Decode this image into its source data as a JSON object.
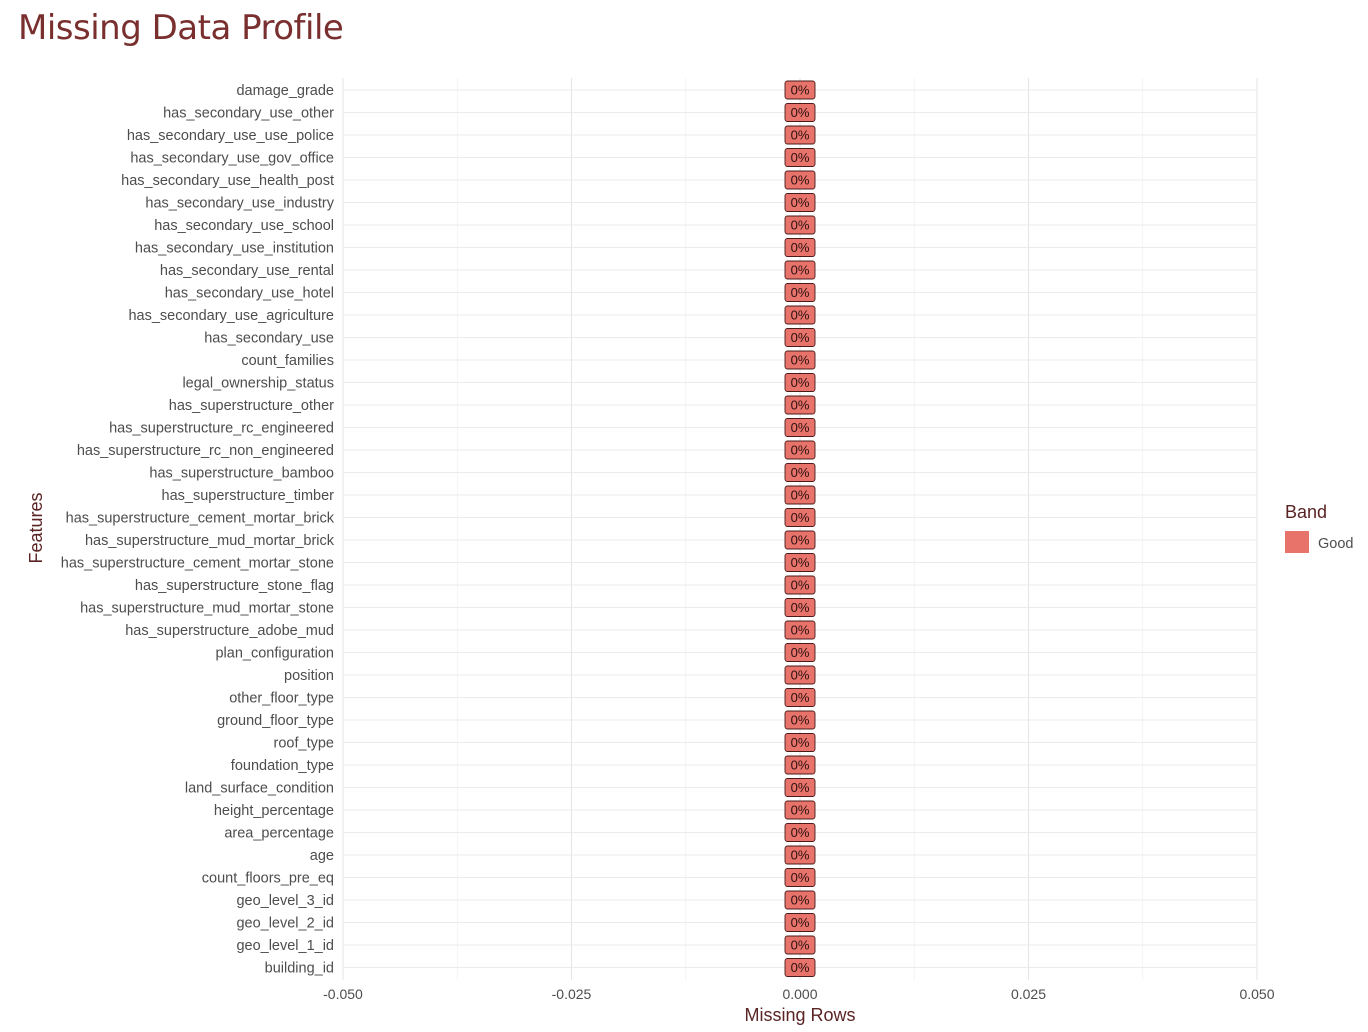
{
  "chart_data": {
    "type": "bar",
    "orientation": "horizontal",
    "title": "Missing Data Profile",
    "xlabel": "Missing Rows",
    "ylabel": "Features",
    "xlim": [
      -0.05,
      0.05
    ],
    "x_ticks": [
      -0.05,
      -0.025,
      0,
      0.025,
      0.05
    ],
    "x_tick_labels": [
      "-0.050",
      "-0.025",
      "0.000",
      "0.025",
      "0.050"
    ],
    "grid": true,
    "legend": {
      "title": "Band",
      "position": "right",
      "entries": [
        {
          "label": "Good",
          "color": "#e8736b"
        }
      ]
    },
    "categories": [
      "damage_grade",
      "has_secondary_use_other",
      "has_secondary_use_use_police",
      "has_secondary_use_gov_office",
      "has_secondary_use_health_post",
      "has_secondary_use_industry",
      "has_secondary_use_school",
      "has_secondary_use_institution",
      "has_secondary_use_rental",
      "has_secondary_use_hotel",
      "has_secondary_use_agriculture",
      "has_secondary_use",
      "count_families",
      "legal_ownership_status",
      "has_superstructure_other",
      "has_superstructure_rc_engineered",
      "has_superstructure_rc_non_engineered",
      "has_superstructure_bamboo",
      "has_superstructure_timber",
      "has_superstructure_cement_mortar_brick",
      "has_superstructure_mud_mortar_brick",
      "has_superstructure_cement_mortar_stone",
      "has_superstructure_stone_flag",
      "has_superstructure_mud_mortar_stone",
      "has_superstructure_adobe_mud",
      "plan_configuration",
      "position",
      "other_floor_type",
      "ground_floor_type",
      "roof_type",
      "foundation_type",
      "land_surface_condition",
      "height_percentage",
      "area_percentage",
      "age",
      "count_floors_pre_eq",
      "geo_level_3_id",
      "geo_level_2_id",
      "geo_level_1_id",
      "building_id"
    ],
    "values": [
      0,
      0,
      0,
      0,
      0,
      0,
      0,
      0,
      0,
      0,
      0,
      0,
      0,
      0,
      0,
      0,
      0,
      0,
      0,
      0,
      0,
      0,
      0,
      0,
      0,
      0,
      0,
      0,
      0,
      0,
      0,
      0,
      0,
      0,
      0,
      0,
      0,
      0,
      0,
      0
    ],
    "value_labels": [
      "0%",
      "0%",
      "0%",
      "0%",
      "0%",
      "0%",
      "0%",
      "0%",
      "0%",
      "0%",
      "0%",
      "0%",
      "0%",
      "0%",
      "0%",
      "0%",
      "0%",
      "0%",
      "0%",
      "0%",
      "0%",
      "0%",
      "0%",
      "0%",
      "0%",
      "0%",
      "0%",
      "0%",
      "0%",
      "0%",
      "0%",
      "0%",
      "0%",
      "0%",
      "0%",
      "0%",
      "0%",
      "0%",
      "0%",
      "0%"
    ],
    "band": [
      "Good",
      "Good",
      "Good",
      "Good",
      "Good",
      "Good",
      "Good",
      "Good",
      "Good",
      "Good",
      "Good",
      "Good",
      "Good",
      "Good",
      "Good",
      "Good",
      "Good",
      "Good",
      "Good",
      "Good",
      "Good",
      "Good",
      "Good",
      "Good",
      "Good",
      "Good",
      "Good",
      "Good",
      "Good",
      "Good",
      "Good",
      "Good",
      "Good",
      "Good",
      "Good",
      "Good",
      "Good",
      "Good",
      "Good",
      "Good"
    ]
  }
}
